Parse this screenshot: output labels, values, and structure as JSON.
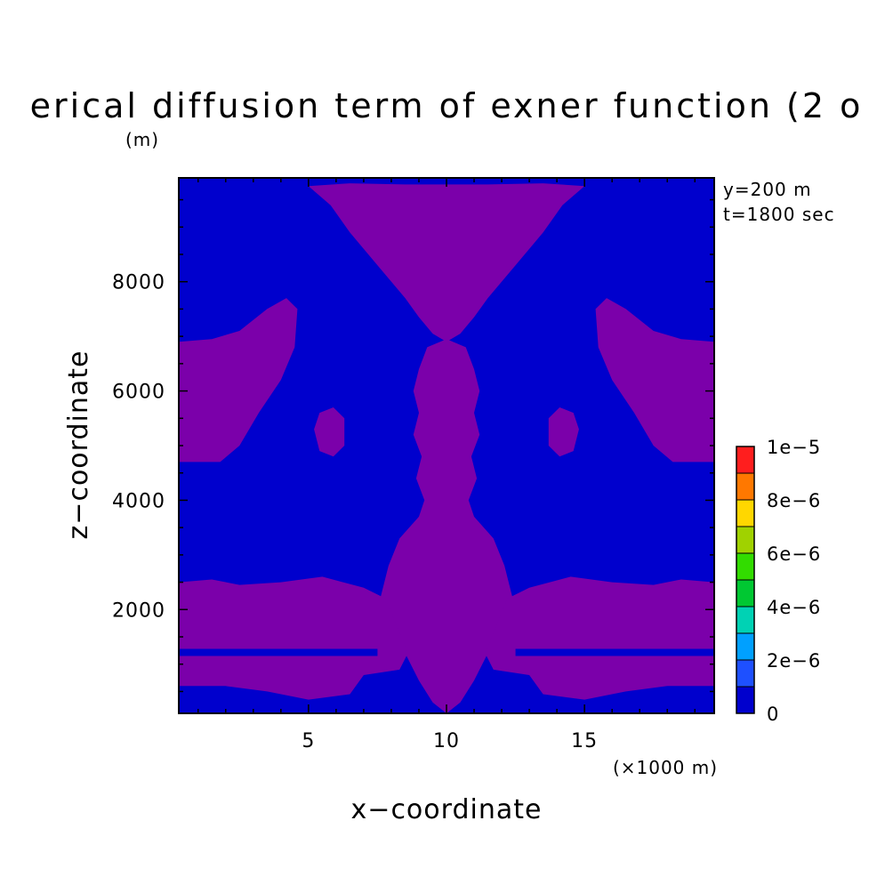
{
  "chart_data": {
    "type": "heatmap",
    "title": "erical diffusion term of exner function (2 o",
    "xlabel": "x−coordinate",
    "ylabel": "z−coordinate",
    "x_unit_label": "(×1000 m)",
    "y_unit_label": "(m)",
    "annotations": [
      "y=200 m",
      "t=1800 sec"
    ],
    "xlim": [
      0.3,
      19.7
    ],
    "ylim": [
      100,
      9900
    ],
    "x_ticks": [
      {
        "value": 5,
        "label": "5"
      },
      {
        "value": 10,
        "label": "10"
      },
      {
        "value": 15,
        "label": "15"
      }
    ],
    "y_ticks": [
      {
        "value": 2000,
        "label": "2000"
      },
      {
        "value": 4000,
        "label": "4000"
      },
      {
        "value": 6000,
        "label": "6000"
      },
      {
        "value": 8000,
        "label": "8000"
      }
    ],
    "colorbar": {
      "min": 0,
      "max": 1e-05,
      "levels": 10,
      "colors": [
        "#0000cd",
        "#1e50ff",
        "#00a0ff",
        "#00d2b4",
        "#00c832",
        "#32dc00",
        "#a0d200",
        "#ffd700",
        "#ff7800",
        "#ff1e1e"
      ],
      "labels": [
        {
          "value": 0,
          "label": "0"
        },
        {
          "value": 2e-06,
          "label": "2e−6"
        },
        {
          "value": 4e-06,
          "label": "4e−6"
        },
        {
          "value": 6e-06,
          "label": "6e−6"
        },
        {
          "value": 8e-06,
          "label": "8e−6"
        },
        {
          "value": 1e-05,
          "label": "1e−5"
        }
      ]
    },
    "background_color": "#0000cd",
    "region_color": "#7b00aa",
    "regions": [
      {
        "name": "top-dome",
        "points": [
          [
            5.0,
            9750
          ],
          [
            6.5,
            9800
          ],
          [
            8.5,
            9780
          ],
          [
            11.5,
            9780
          ],
          [
            13.5,
            9800
          ],
          [
            15.0,
            9750
          ],
          [
            14.2,
            9400
          ],
          [
            13.5,
            8900
          ],
          [
            12.5,
            8300
          ],
          [
            11.5,
            7700
          ],
          [
            11.0,
            7350
          ],
          [
            10.5,
            7050
          ],
          [
            10.0,
            6900
          ],
          [
            9.5,
            7050
          ],
          [
            9.0,
            7350
          ],
          [
            8.5,
            7700
          ],
          [
            7.5,
            8300
          ],
          [
            6.5,
            8900
          ],
          [
            5.8,
            9400
          ]
        ]
      },
      {
        "name": "left-upper-lobe",
        "points": [
          [
            0.3,
            6900
          ],
          [
            1.5,
            6950
          ],
          [
            2.5,
            7100
          ],
          [
            3.5,
            7500
          ],
          [
            4.2,
            7700
          ],
          [
            4.6,
            7500
          ],
          [
            4.5,
            6800
          ],
          [
            4.0,
            6200
          ],
          [
            3.2,
            5600
          ],
          [
            2.5,
            5000
          ],
          [
            1.8,
            4700
          ],
          [
            0.3,
            4700
          ]
        ]
      },
      {
        "name": "right-upper-lobe",
        "points": [
          [
            19.7,
            6900
          ],
          [
            18.5,
            6950
          ],
          [
            17.5,
            7100
          ],
          [
            16.5,
            7500
          ],
          [
            15.8,
            7700
          ],
          [
            15.4,
            7500
          ],
          [
            15.5,
            6800
          ],
          [
            16.0,
            6200
          ],
          [
            16.8,
            5600
          ],
          [
            17.5,
            5000
          ],
          [
            18.2,
            4700
          ],
          [
            19.7,
            4700
          ]
        ]
      },
      {
        "name": "left-small-blob",
        "points": [
          [
            5.2,
            5300
          ],
          [
            5.4,
            5600
          ],
          [
            5.9,
            5700
          ],
          [
            6.3,
            5500
          ],
          [
            6.3,
            5000
          ],
          [
            5.9,
            4800
          ],
          [
            5.4,
            4900
          ]
        ]
      },
      {
        "name": "right-small-blob",
        "points": [
          [
            13.7,
            5500
          ],
          [
            13.7,
            5000
          ],
          [
            14.1,
            4800
          ],
          [
            14.6,
            4900
          ],
          [
            14.8,
            5300
          ],
          [
            14.6,
            5600
          ],
          [
            14.1,
            5700
          ]
        ]
      },
      {
        "name": "central-column",
        "points": [
          [
            9.3,
            6800
          ],
          [
            9.0,
            6400
          ],
          [
            8.8,
            6000
          ],
          [
            9.0,
            5600
          ],
          [
            8.8,
            5200
          ],
          [
            9.1,
            4800
          ],
          [
            8.9,
            4400
          ],
          [
            9.2,
            4000
          ],
          [
            9.0,
            3700
          ],
          [
            8.3,
            3300
          ],
          [
            7.9,
            2800
          ],
          [
            7.6,
            2200
          ],
          [
            8.0,
            1700
          ],
          [
            8.5,
            1200
          ],
          [
            9.0,
            700
          ],
          [
            9.5,
            300
          ],
          [
            10.0,
            100
          ],
          [
            10.5,
            300
          ],
          [
            11.0,
            700
          ],
          [
            11.5,
            1200
          ],
          [
            12.0,
            1700
          ],
          [
            12.4,
            2200
          ],
          [
            12.1,
            2800
          ],
          [
            11.7,
            3300
          ],
          [
            11.0,
            3700
          ],
          [
            10.8,
            4000
          ],
          [
            11.1,
            4400
          ],
          [
            10.9,
            4800
          ],
          [
            11.2,
            5200
          ],
          [
            11.0,
            5600
          ],
          [
            11.2,
            6000
          ],
          [
            11.0,
            6400
          ],
          [
            10.7,
            6800
          ],
          [
            10.0,
            6950
          ]
        ]
      },
      {
        "name": "left-lower-band",
        "points": [
          [
            0.3,
            2500
          ],
          [
            1.5,
            2550
          ],
          [
            2.5,
            2450
          ],
          [
            4.0,
            2500
          ],
          [
            5.5,
            2600
          ],
          [
            7.0,
            2400
          ],
          [
            7.8,
            2200
          ],
          [
            8.2,
            1700
          ],
          [
            8.6,
            1200
          ],
          [
            8.3,
            900
          ],
          [
            7.0,
            800
          ],
          [
            6.5,
            450
          ],
          [
            5.0,
            350
          ],
          [
            3.5,
            500
          ],
          [
            2.0,
            600
          ],
          [
            0.3,
            600
          ]
        ]
      },
      {
        "name": "right-lower-band",
        "points": [
          [
            19.7,
            2500
          ],
          [
            18.5,
            2550
          ],
          [
            17.5,
            2450
          ],
          [
            16.0,
            2500
          ],
          [
            14.5,
            2600
          ],
          [
            13.0,
            2400
          ],
          [
            12.2,
            2200
          ],
          [
            11.8,
            1700
          ],
          [
            11.4,
            1200
          ],
          [
            11.7,
            900
          ],
          [
            13.0,
            800
          ],
          [
            13.5,
            450
          ],
          [
            15.0,
            350
          ],
          [
            16.5,
            500
          ],
          [
            18.0,
            600
          ],
          [
            19.7,
            600
          ]
        ]
      }
    ],
    "stripes": [
      {
        "name": "left-blue-stripe",
        "x": [
          0.3,
          7.5
        ],
        "y": [
          1150,
          1280
        ]
      },
      {
        "name": "right-blue-stripe",
        "x": [
          12.5,
          19.7
        ],
        "y": [
          1150,
          1280
        ]
      }
    ]
  }
}
